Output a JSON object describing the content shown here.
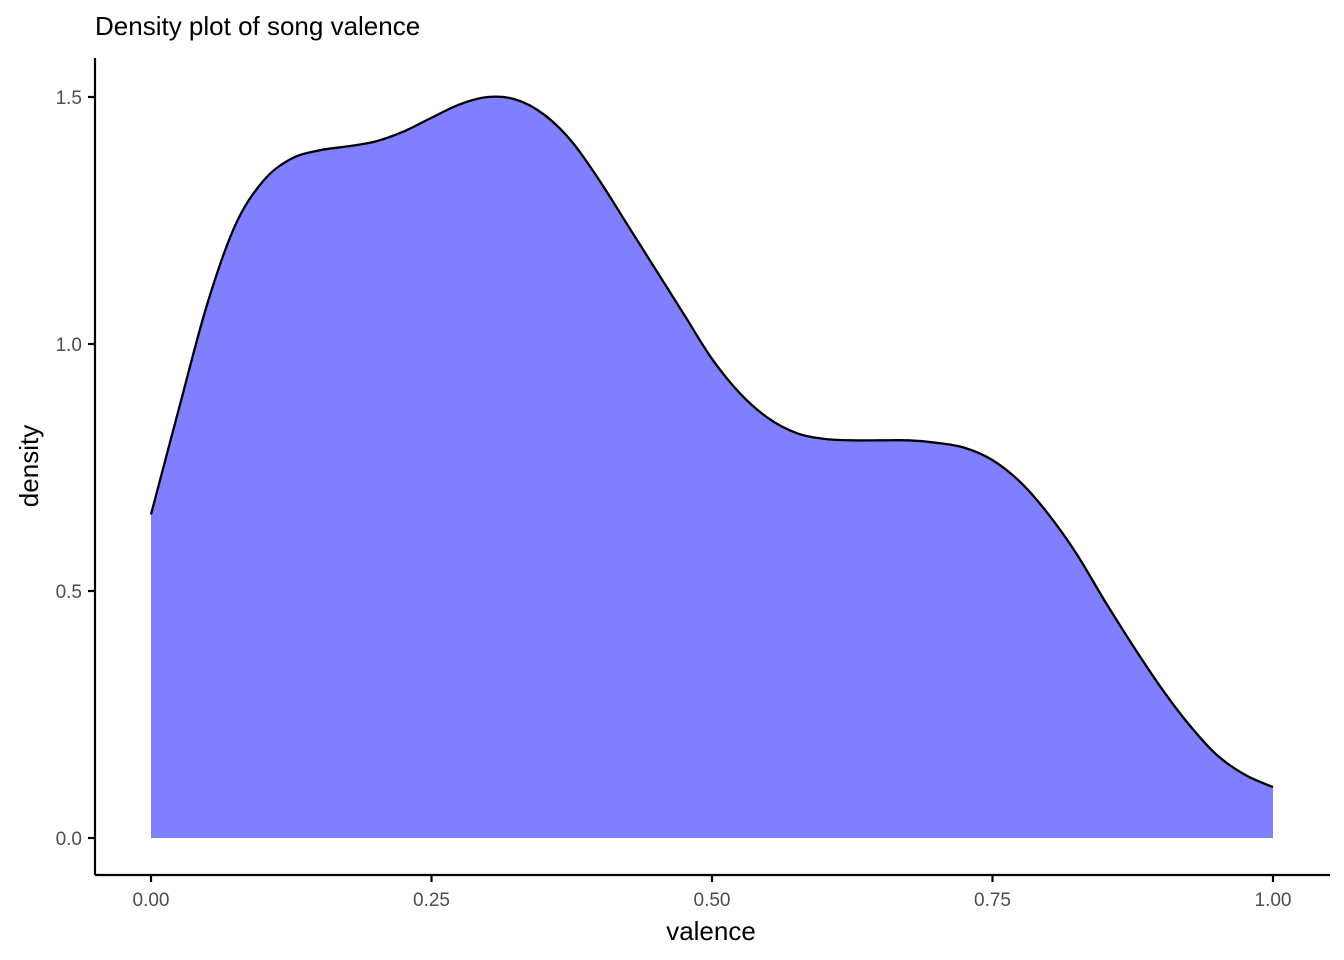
{
  "chart_data": {
    "type": "area",
    "title": "Density plot of song valence",
    "xlabel": "valence",
    "ylabel": "density",
    "xlim": [
      0.0,
      1.0
    ],
    "ylim": [
      0.0,
      1.5
    ],
    "x_ticks": [
      "0.00",
      "0.25",
      "0.50",
      "0.75",
      "1.00"
    ],
    "x_tick_values": [
      0.0,
      0.25,
      0.5,
      0.75,
      1.0
    ],
    "y_ticks": [
      "0.0",
      "0.5",
      "1.0",
      "1.5"
    ],
    "y_tick_values": [
      0.0,
      0.5,
      1.0,
      1.5
    ],
    "fill_color": "#8080ff",
    "line_color": "#000000",
    "grid": false,
    "legend": "none",
    "series": [
      {
        "x": [
          0.0,
          0.025,
          0.05,
          0.075,
          0.1,
          0.125,
          0.15,
          0.175,
          0.2,
          0.225,
          0.25,
          0.275,
          0.3,
          0.325,
          0.35,
          0.375,
          0.4,
          0.425,
          0.45,
          0.475,
          0.5,
          0.525,
          0.55,
          0.575,
          0.6,
          0.625,
          0.65,
          0.675,
          0.7,
          0.725,
          0.75,
          0.775,
          0.8,
          0.825,
          0.85,
          0.875,
          0.9,
          0.925,
          0.95,
          0.975,
          1.0
        ],
        "y": [
          0.655,
          0.87,
          1.08,
          1.24,
          1.33,
          1.375,
          1.392,
          1.4,
          1.41,
          1.43,
          1.458,
          1.485,
          1.5,
          1.495,
          1.465,
          1.41,
          1.33,
          1.24,
          1.15,
          1.06,
          0.97,
          0.9,
          0.85,
          0.82,
          0.808,
          0.805,
          0.805,
          0.805,
          0.8,
          0.79,
          0.765,
          0.72,
          0.655,
          0.575,
          0.48,
          0.39,
          0.305,
          0.23,
          0.168,
          0.128,
          0.103
        ]
      }
    ]
  }
}
